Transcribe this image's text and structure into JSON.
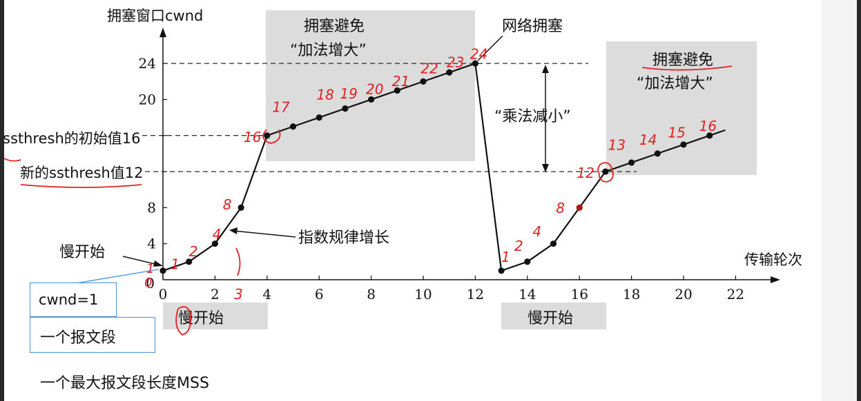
{
  "chart_data": {
    "type": "line",
    "title": "",
    "ylabel": "拥塞窗口cwnd",
    "xlabel": "传输轮次",
    "xlim": [
      0,
      22
    ],
    "ylim": [
      0,
      24
    ],
    "x_ticks": [
      0,
      2,
      4,
      6,
      8,
      10,
      12,
      14,
      16,
      18,
      20,
      22
    ],
    "y_ticks": [
      0,
      4,
      8,
      12,
      16,
      20,
      24
    ],
    "series": [
      {
        "x": [
          0,
          1,
          2,
          3,
          4,
          5,
          6,
          7,
          8,
          9,
          10,
          11,
          12,
          13,
          14,
          15,
          16,
          17,
          18,
          19,
          20,
          21
        ],
        "values": [
          1,
          2,
          4,
          8,
          16,
          17,
          18,
          19,
          20,
          21,
          22,
          23,
          24,
          1,
          2,
          4,
          8,
          12,
          13,
          14,
          15,
          16
        ]
      }
    ],
    "threshold_labels": {
      "initial": "ssthresh的初始值16",
      "new": "新的ssthresh值12"
    },
    "annotations": {
      "congestion_avoid_1": [
        "拥塞避免",
        "“加法增大”"
      ],
      "congestion_avoid_2": [
        "拥塞避免",
        "“加法增大”"
      ],
      "congestion": "网络拥塞",
      "multiplicative_decrease": "“乘法减小”",
      "exponential": "指数规律增长",
      "slow_start_arrow": "慢开始",
      "slow_start_1": "慢开始",
      "slow_start_2": "慢开始"
    },
    "handwritten": {
      "round1": [
        "1",
        "2",
        "4",
        "8",
        "16",
        "17",
        "18",
        "19",
        "20",
        "21",
        "22",
        "23",
        "24"
      ],
      "round2": [
        "1",
        "2",
        "4",
        "8",
        "12",
        "13",
        "14",
        "15",
        "16"
      ],
      "axis_marks": [
        "1",
        "0",
        "3"
      ]
    }
  },
  "boxes": {
    "cwnd": "cwnd=1",
    "segment": "一个报文段",
    "mss_note": "一个最大报文段长度MSS"
  },
  "colors": {
    "shade": "#dcdcdc",
    "ink": "#111111",
    "annotation_red": "#e02020",
    "callout_blue": "#4d8fd6",
    "red_point": "#b01818"
  }
}
